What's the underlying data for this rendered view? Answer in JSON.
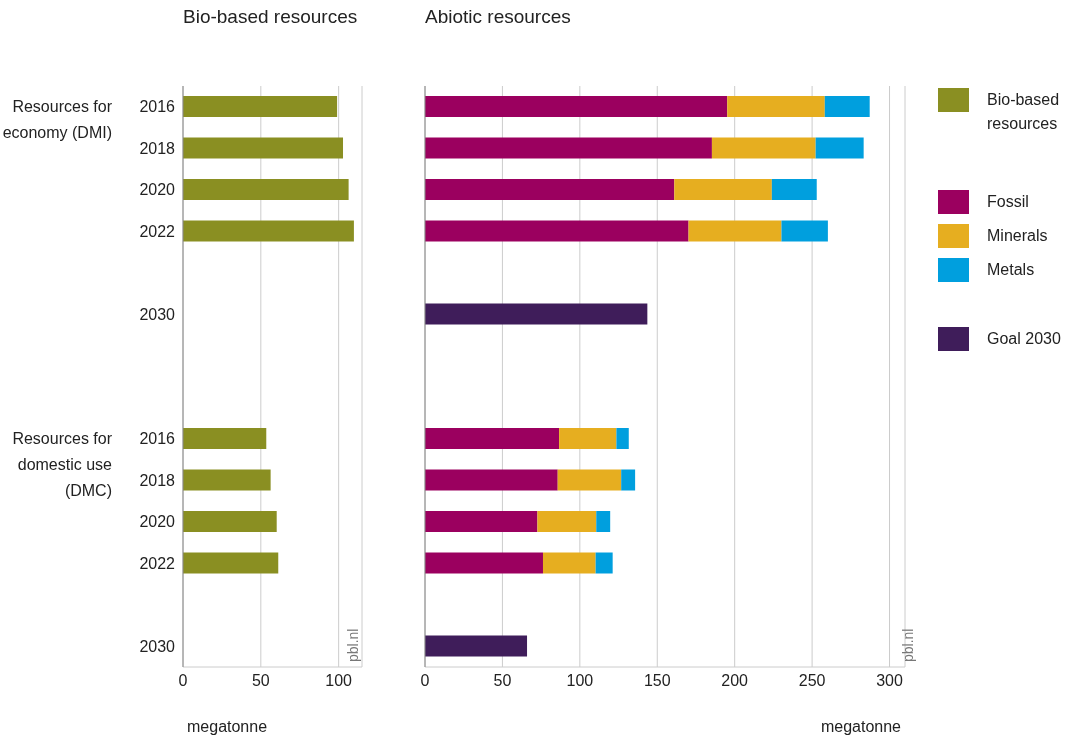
{
  "chart_data": [
    {
      "type": "bar",
      "orientation": "horizontal",
      "title": "Bio-based resources",
      "xlabel": "megatonne",
      "categories": [
        "2016",
        "2018",
        "2020",
        "2022",
        null,
        "2030",
        null,
        null,
        "2016",
        "2018",
        "2020",
        "2022",
        null,
        "2030"
      ],
      "series": [
        {
          "name": "Bio-based resources",
          "color": "#8a8f22",
          "values": [
            99,
            102.8,
            106.4,
            109.8,
            null,
            null,
            null,
            null,
            53.5,
            56.3,
            60.2,
            61.2,
            null,
            null
          ]
        }
      ],
      "xlim": [
        0,
        115
      ],
      "xticks": [
        0,
        50,
        100
      ],
      "grid": "x",
      "legend": "right",
      "tick_labels": "xy",
      "annotations": [
        "Resources for economy (DMI)",
        "Resources for domestic use (DMC)",
        "pbl.nl"
      ]
    },
    {
      "type": "bar",
      "orientation": "horizontal",
      "stacked": true,
      "title": "Abiotic resources",
      "xlabel": "megatonne",
      "categories": [
        "2016",
        "2018",
        "2020",
        "2022",
        null,
        "2030",
        null,
        null,
        "2016",
        "2018",
        "2020",
        "2022",
        null,
        "2030"
      ],
      "series": [
        {
          "name": "Fossil",
          "color": "#9b005f",
          "values": [
            195.2,
            185.3,
            161,
            170.2,
            null,
            null,
            null,
            null,
            86.6,
            85.7,
            72.6,
            76.2,
            null,
            null
          ]
        },
        {
          "name": "Minerals",
          "color": "#e6ae20",
          "values": [
            63,
            67,
            63,
            60,
            null,
            null,
            null,
            null,
            37,
            41,
            38,
            34,
            null,
            null
          ]
        },
        {
          "name": "Metals",
          "color": "#009fde",
          "values": [
            29,
            31,
            29,
            30,
            null,
            null,
            null,
            null,
            8,
            9,
            9,
            11,
            null,
            null
          ]
        },
        {
          "name": "Goal 2030",
          "color": "#3f1d5a",
          "values": [
            null,
            null,
            null,
            null,
            null,
            143.6,
            null,
            null,
            null,
            null,
            null,
            null,
            null,
            65.9
          ]
        }
      ],
      "xlim": [
        0,
        310
      ],
      "xticks": [
        0,
        50,
        100,
        150,
        200,
        250,
        300
      ],
      "grid": "x",
      "legend": "right",
      "tick_labels": "x",
      "annotations": [
        "pbl.nl"
      ]
    }
  ]
}
